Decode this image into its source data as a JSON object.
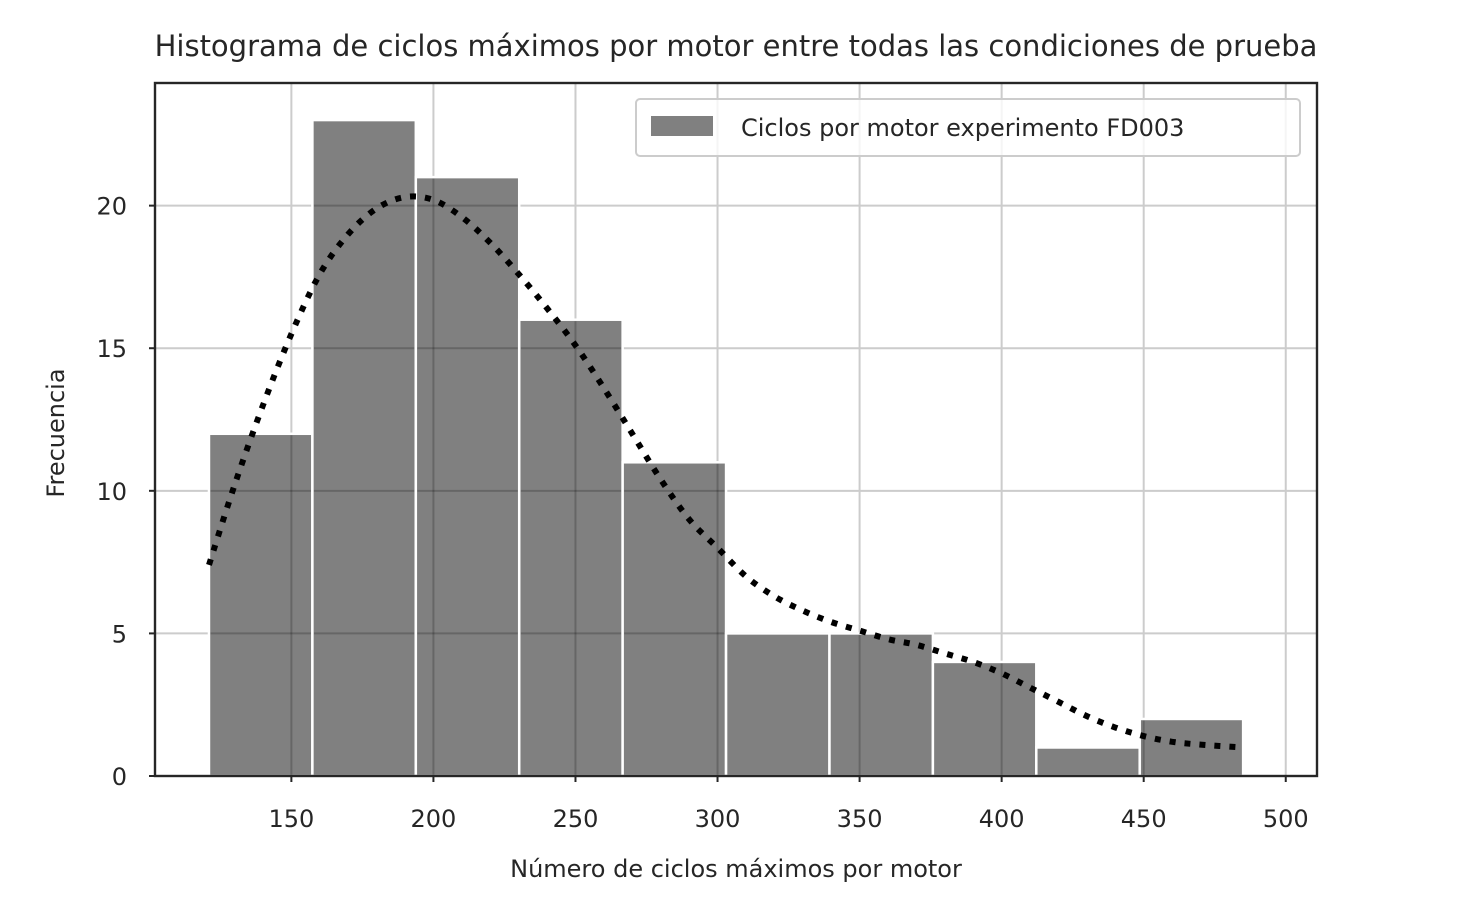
{
  "chart_data": {
    "type": "bar",
    "title": "Histograma de ciclos máximos por motor entre todas las condiciones de prueba",
    "xlabel": "Número de ciclos máximos por motor",
    "ylabel": "Frecuencia",
    "xlim": [
      102,
      511
    ],
    "ylim": [
      0,
      24.3
    ],
    "xticks": [
      150,
      200,
      250,
      300,
      350,
      400,
      450,
      500
    ],
    "yticks": [
      0,
      5,
      10,
      15,
      20
    ],
    "bin_edges": [
      121,
      157.4,
      193.8,
      230.2,
      266.6,
      303.0,
      339.4,
      375.8,
      412.2,
      448.6,
      485
    ],
    "values": [
      12,
      23,
      21,
      16,
      11,
      5,
      5,
      4,
      1,
      2
    ],
    "legend": {
      "label": "Ciclos por motor experimento FD003",
      "position": "top-right"
    },
    "grid": true,
    "kde": {
      "style": "dotted",
      "x": [
        121,
        130,
        140,
        150,
        160,
        170,
        180,
        190,
        200,
        210,
        220,
        230,
        240,
        250,
        260,
        270,
        280,
        290,
        300,
        310,
        320,
        330,
        340,
        350,
        360,
        370,
        380,
        390,
        400,
        410,
        420,
        430,
        440,
        450,
        460,
        470,
        485
      ],
      "y": [
        7.4,
        10.2,
        13.0,
        15.5,
        17.6,
        19.0,
        19.9,
        20.3,
        20.2,
        19.6,
        18.7,
        17.6,
        16.4,
        15.1,
        13.6,
        12.0,
        10.4,
        9.0,
        8.0,
        7.0,
        6.3,
        5.8,
        5.4,
        5.1,
        4.8,
        4.6,
        4.3,
        4.0,
        3.6,
        3.1,
        2.6,
        2.1,
        1.7,
        1.4,
        1.2,
        1.1,
        1.0
      ]
    },
    "colors": {
      "bar": "#808080",
      "kde": "#000000",
      "grid": "#cccccc",
      "spine": "#262626"
    }
  }
}
